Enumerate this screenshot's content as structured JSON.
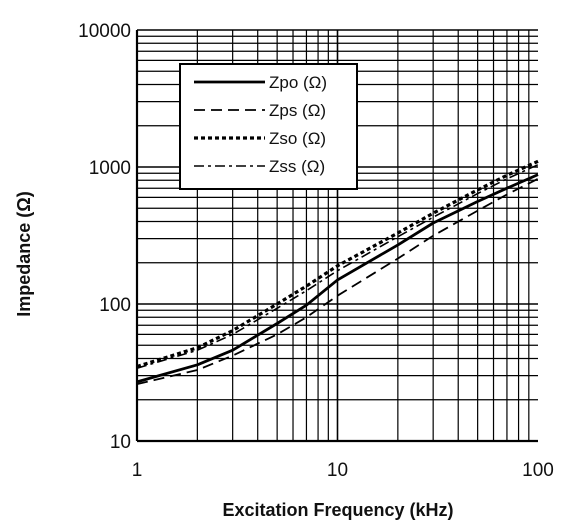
{
  "chart_data": {
    "type": "line",
    "title": "",
    "xlabel": "Excitation Frequency (kHz)",
    "ylabel": "Impedance (Ω)",
    "xscale": "log",
    "yscale": "log",
    "xlim": [
      1,
      100
    ],
    "ylim": [
      10,
      10000
    ],
    "x_ticks": [
      1,
      10,
      100
    ],
    "x_tick_labels": [
      "1",
      "10",
      "100"
    ],
    "y_ticks": [
      10,
      100,
      1000,
      10000
    ],
    "y_tick_labels": [
      "10",
      "100",
      "1000",
      "10000"
    ],
    "grid": true,
    "legend_position": "top-left",
    "series": [
      {
        "name": "Zpo (Ω)",
        "style": "solid",
        "x": [
          1,
          2,
          3,
          5,
          7,
          10,
          20,
          30,
          50,
          70,
          100
        ],
        "values": [
          27,
          36,
          46,
          72,
          98,
          150,
          270,
          390,
          560,
          700,
          880
        ]
      },
      {
        "name": "Zps (Ω)",
        "style": "dashed",
        "x": [
          1,
          2,
          3,
          5,
          7,
          10,
          20,
          30,
          50,
          70,
          100
        ],
        "values": [
          26,
          33,
          42,
          60,
          80,
          115,
          215,
          315,
          480,
          630,
          820
        ]
      },
      {
        "name": "Zso (Ω)",
        "style": "dotted",
        "x": [
          1,
          2,
          3,
          5,
          7,
          10,
          20,
          30,
          50,
          70,
          100
        ],
        "values": [
          35,
          48,
          64,
          100,
          135,
          190,
          330,
          460,
          680,
          870,
          1100
        ]
      },
      {
        "name": "Zss (Ω)",
        "style": "dashdot",
        "x": [
          1,
          2,
          3,
          5,
          7,
          10,
          20,
          30,
          50,
          70,
          100
        ],
        "values": [
          34,
          46,
          60,
          93,
          125,
          175,
          310,
          430,
          640,
          820,
          1040
        ]
      }
    ]
  },
  "colors": {
    "line": "#000000",
    "grid": "#000000",
    "background": "#ffffff"
  }
}
